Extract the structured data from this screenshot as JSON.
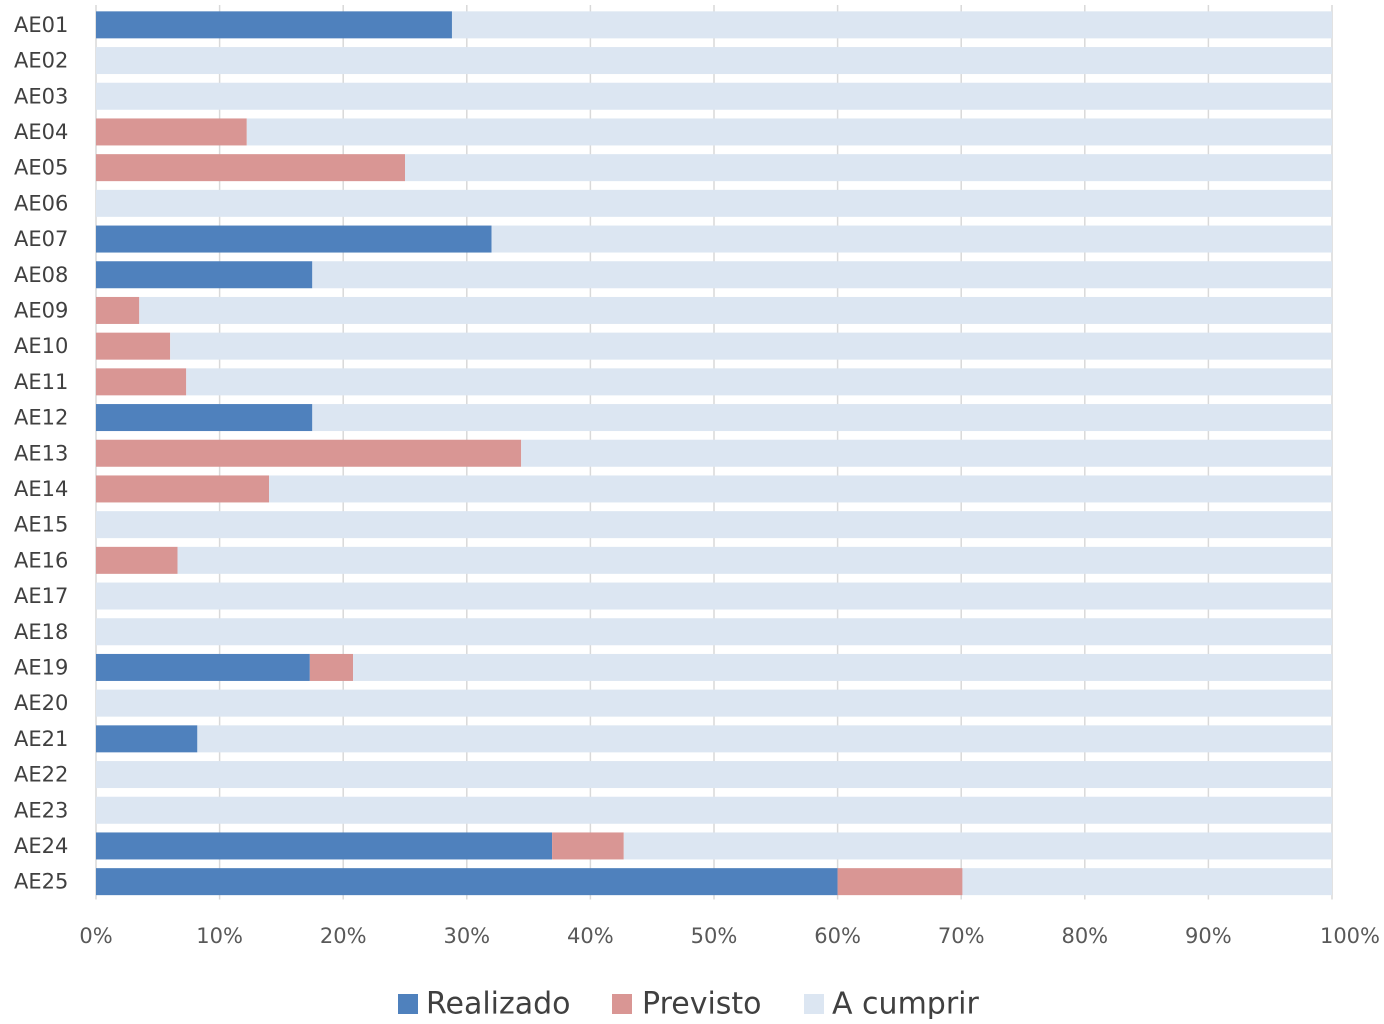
{
  "chart_data": {
    "type": "bar",
    "orientation": "horizontal",
    "stacked": true,
    "percent_stacked": true,
    "categories": [
      "AE01",
      "AE02",
      "AE03",
      "AE04",
      "AE05",
      "AE06",
      "AE07",
      "AE08",
      "AE09",
      "AE10",
      "AE11",
      "AE12",
      "AE13",
      "AE14",
      "AE15",
      "AE16",
      "AE17",
      "AE18",
      "AE19",
      "AE20",
      "AE21",
      "AE22",
      "AE23",
      "AE24",
      "AE25"
    ],
    "series": [
      {
        "name": "Realizado",
        "color": "#4f81bd",
        "values": [
          28.8,
          0,
          0,
          0,
          0,
          0,
          32,
          17.5,
          0,
          0,
          0,
          17.5,
          0,
          0,
          0,
          0,
          0,
          0,
          17.3,
          0,
          8.2,
          0,
          0,
          36.9,
          60
        ]
      },
      {
        "name": "Previsto",
        "color": "#d99694",
        "values": [
          0,
          0,
          0,
          12.2,
          25,
          0,
          0,
          0,
          3.5,
          6,
          7.3,
          0,
          34.4,
          14,
          0,
          6.6,
          0,
          0,
          3.5,
          0,
          0,
          0,
          0,
          5.8,
          10.1
        ]
      },
      {
        "name": "A cumprir",
        "color": "#dce6f2",
        "values": [
          71.2,
          100,
          100,
          87.8,
          75,
          100,
          68,
          82.5,
          96.5,
          94,
          92.7,
          82.5,
          65.6,
          86,
          100,
          93.4,
          100,
          100,
          79.2,
          100,
          91.8,
          100,
          100,
          57.3,
          29.9
        ]
      }
    ],
    "xlim": [
      0,
      100
    ],
    "xticks": [
      "0%",
      "10%",
      "20%",
      "30%",
      "40%",
      "50%",
      "60%",
      "70%",
      "80%",
      "90%",
      "100%"
    ],
    "grid": true,
    "legend_position": "bottom",
    "title": "",
    "xlabel": "",
    "ylabel": ""
  }
}
